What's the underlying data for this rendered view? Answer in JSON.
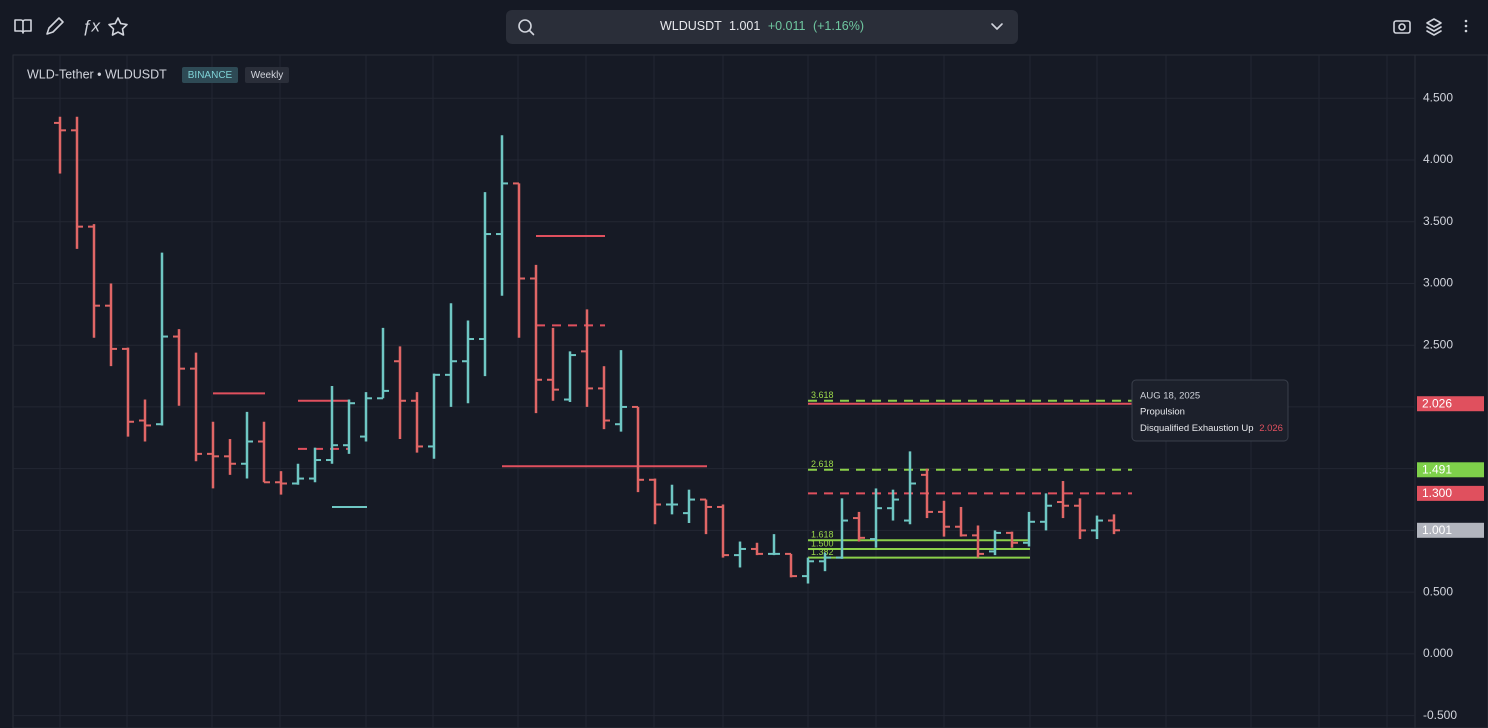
{
  "toolbar": {
    "symbol": "WLDUSDT",
    "price": "1.001",
    "change": "+0.011",
    "change_pct": "(+1.16%)"
  },
  "tooltip": {
    "date": "AUG 18, 2025",
    "title": "Propulsion",
    "text": "Disqualified Exhaustion Up",
    "value": "2.026"
  },
  "chart_data": {
    "type": "ohlc",
    "title": "WLD-Tether • WLDUSDT",
    "exchange": "BINANCE",
    "interval": "Weekly",
    "up_color": "#6fc7c4",
    "down_color": "#e06666",
    "ylim": [
      -0.6,
      4.85
    ],
    "yticks": [
      {
        "value": 4.5,
        "label": "4.500"
      },
      {
        "value": 4,
        "label": "4.000"
      },
      {
        "value": 3.5,
        "label": "3.500"
      },
      {
        "value": 3,
        "label": "3.000"
      },
      {
        "value": 2.5,
        "label": "2.500"
      },
      {
        "value": 2,
        "label": "2.000"
      },
      {
        "value": 1.5,
        "label": "1.500"
      },
      {
        "value": 1,
        "label": "1.000"
      },
      {
        "value": 0.5,
        "label": "0.500"
      },
      {
        "value": 0,
        "label": "0.000"
      },
      {
        "value": -0.5,
        "label": "-0.500"
      }
    ],
    "grid": true,
    "open": [
      4.3,
      4.24,
      3.46,
      2.82,
      2.47,
      1.89,
      1.86,
      2.57,
      2.31,
      1.62,
      1.6,
      1.54,
      1.72,
      1.39,
      1.38,
      1.42,
      1.57,
      1.69,
      1.76,
      2.07,
      2.37,
      2.05,
      1.68,
      2.26,
      2.37,
      2.55,
      3.4,
      3.81,
      3.04,
      2.22,
      2.06,
      2.45,
      2.15,
      1.86,
      2.0,
      1.41,
      1.21,
      1.14,
      1.25,
      1.19,
      0.8,
      0.85,
      0.81,
      0.81,
      0.63,
      0.75,
      0.78,
      1.1,
      0.93,
      1.18,
      1.08,
      1.45,
      1.15,
      1.03,
      0.96,
      0.83,
      0.98,
      0.9,
      1.07,
      1.23,
      1.2,
      1.0,
      1.08
    ],
    "high": [
      4.35,
      4.35,
      3.48,
      3.0,
      2.48,
      2.06,
      3.25,
      2.63,
      2.44,
      1.88,
      1.74,
      1.96,
      1.88,
      1.48,
      1.54,
      1.67,
      2.17,
      2.06,
      2.12,
      2.64,
      2.49,
      2.12,
      2.27,
      2.84,
      2.7,
      3.74,
      4.2,
      3.81,
      3.15,
      2.64,
      2.45,
      2.79,
      2.33,
      2.46,
      2.0,
      1.42,
      1.37,
      1.33,
      1.25,
      1.21,
      0.91,
      0.9,
      0.97,
      0.81,
      0.78,
      0.82,
      1.26,
      1.15,
      1.34,
      1.33,
      1.64,
      1.5,
      1.24,
      1.19,
      1.04,
      1.0,
      0.99,
      1.15,
      1.3,
      1.4,
      1.26,
      1.12,
      1.13
    ],
    "low": [
      3.89,
      3.28,
      2.56,
      2.33,
      1.76,
      1.72,
      1.85,
      2.01,
      1.56,
      1.34,
      1.45,
      1.42,
      1.39,
      1.29,
      1.37,
      1.39,
      1.54,
      1.62,
      1.72,
      2.07,
      1.74,
      1.63,
      1.58,
      2.0,
      2.03,
      2.25,
      2.9,
      2.56,
      1.95,
      2.05,
      2.04,
      2.0,
      1.82,
      1.8,
      1.31,
      1.05,
      1.13,
      1.06,
      0.97,
      0.78,
      0.7,
      0.8,
      0.8,
      0.62,
      0.57,
      0.67,
      0.77,
      0.91,
      0.86,
      1.08,
      1.05,
      1.1,
      0.95,
      0.95,
      0.78,
      0.8,
      0.86,
      0.87,
      1.0,
      1.1,
      0.93,
      0.93,
      0.97
    ],
    "close": [
      4.24,
      3.46,
      2.82,
      2.47,
      1.88,
      1.85,
      2.57,
      2.31,
      1.62,
      1.6,
      1.54,
      1.72,
      1.39,
      1.38,
      1.42,
      1.57,
      1.69,
      2.03,
      2.07,
      2.13,
      2.05,
      1.68,
      2.26,
      2.37,
      2.55,
      3.4,
      3.81,
      3.04,
      2.22,
      2.14,
      2.42,
      2.15,
      1.89,
      2.0,
      1.41,
      1.21,
      1.21,
      1.25,
      1.19,
      0.8,
      0.85,
      0.81,
      0.81,
      0.63,
      0.75,
      0.78,
      1.08,
      0.94,
      1.18,
      1.25,
      1.38,
      1.15,
      1.03,
      0.96,
      0.81,
      0.98,
      0.9,
      1.07,
      1.2,
      1.2,
      1.0,
      1.08,
      1.001
    ],
    "levels": [
      {
        "value": 3.384,
        "from": 28,
        "to": 32,
        "color": "#e0505e",
        "style": "solid"
      },
      {
        "value": 2.66,
        "from": 28,
        "to": 32,
        "color": "#e0505e",
        "style": "dashed"
      },
      {
        "value": 2.11,
        "from": 9,
        "to": 12,
        "color": "#e0505e",
        "style": "solid"
      },
      {
        "value": 2.05,
        "from": 14,
        "to": 17,
        "color": "#e0505e",
        "style": "solid"
      },
      {
        "value": 1.66,
        "from": 14,
        "to": 17,
        "color": "#e0505e",
        "style": "dashed"
      },
      {
        "value": 1.52,
        "from": 26,
        "to": 38,
        "color": "#e0505e",
        "style": "solid"
      },
      {
        "value": 1.19,
        "from": 16,
        "to": 18,
        "color": "#6fc7c4",
        "style": "solid"
      },
      {
        "value": 2.05,
        "from": 44,
        "to": 63,
        "color": "#8bd04a",
        "style": "dashed",
        "label": "3.618"
      },
      {
        "value": 2.026,
        "from": 44,
        "to": 63,
        "color": "#e0505e",
        "style": "solid"
      },
      {
        "value": 1.491,
        "from": 44,
        "to": 63,
        "color": "#8bd04a",
        "style": "dashed",
        "label": "2.618"
      },
      {
        "value": 1.3,
        "from": 44,
        "to": 63,
        "color": "#e0505e",
        "style": "dashed"
      },
      {
        "value": 0.92,
        "from": 44,
        "to": 57,
        "color": "#8bd04a",
        "style": "solid",
        "label": "1.618"
      },
      {
        "value": 0.85,
        "from": 44,
        "to": 57,
        "color": "#8bd04a",
        "style": "solid",
        "label": "1.500"
      },
      {
        "value": 0.78,
        "from": 44,
        "to": 57,
        "color": "#8bd04a",
        "style": "solid",
        "label": "1.382"
      }
    ],
    "price_tags": [
      {
        "value": 2.026,
        "color": "#e0505e"
      },
      {
        "value": 1.491,
        "color": "#7ed04a"
      },
      {
        "value": 1.3,
        "label": "1.300",
        "color": "#e0505e"
      },
      {
        "value": 1.001,
        "color": "#b2b5be"
      }
    ]
  }
}
